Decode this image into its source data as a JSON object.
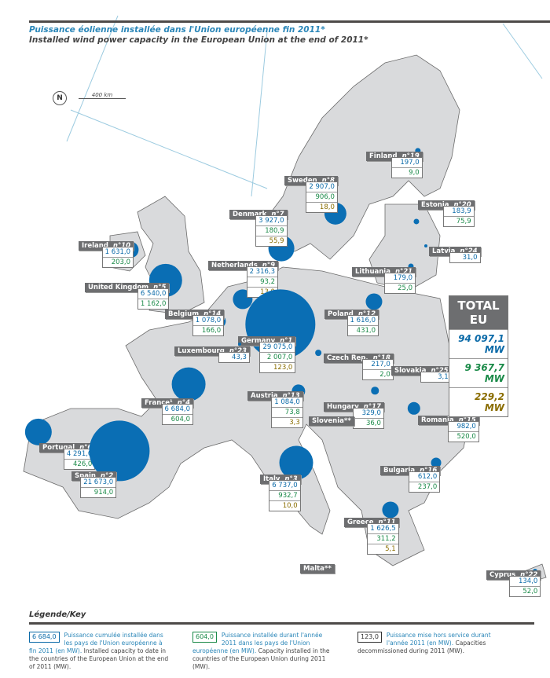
{
  "title_fr": "Puissance éolienne installée dans l'Union européenne fin 2011*",
  "title_en": "Installed wind power capacity in the European Union at the end of 2011*",
  "compass": "N",
  "scale": "400 km",
  "colors": {
    "cumulative": "#0b6aa8",
    "installed_2011": "#1a8a48",
    "decommissioned": "#8a6d00",
    "land": "#d9dadc",
    "label_bg": "#6d6e70",
    "bubble": "#0a6eb4"
  },
  "unit": "MW",
  "countries": [
    {
      "name": "Ireland",
      "rank": "n°10",
      "cumulative": "1 631,0",
      "installed": "203,0",
      "value": 1631
    },
    {
      "name": "United Kingdom",
      "rank": "n°5",
      "cumulative": "6 540,0",
      "installed": "1 162,0",
      "value": 6540
    },
    {
      "name": "Denmark",
      "rank": "n°7",
      "cumulative": "3 927,0",
      "installed": "180,9",
      "decommissioned": "55,9",
      "value": 3927
    },
    {
      "name": "Sweden",
      "rank": "n°8",
      "cumulative": "2 907,0",
      "installed": "906,0",
      "decommissioned": "18,0",
      "value": 2907
    },
    {
      "name": "Finland",
      "rank": "n°19",
      "cumulative": "197,0",
      "installed": "9,0",
      "value": 197
    },
    {
      "name": "Estonia",
      "rank": "n°20",
      "cumulative": "183,9",
      "installed": "75,9",
      "value": 183.9
    },
    {
      "name": "Latvia",
      "rank": "n°24",
      "cumulative": "31,0",
      "value": 31
    },
    {
      "name": "Lithuania",
      "rank": "n°21",
      "cumulative": "179,0",
      "installed": "25,0",
      "value": 179
    },
    {
      "name": "Netherlands",
      "rank": "n°9",
      "cumulative": "2 316,3",
      "installed": "93,2",
      "decommissioned": "13,9",
      "value": 2316.3
    },
    {
      "name": "Belgium",
      "rank": "n°14",
      "cumulative": "1 078,0",
      "installed": "166,0",
      "value": 1078
    },
    {
      "name": "Poland",
      "rank": "n°12",
      "cumulative": "1 616,0",
      "installed": "431,0",
      "value": 1616
    },
    {
      "name": "Germany",
      "rank": "n°1",
      "cumulative": "29 075,0",
      "installed": "2 007,0",
      "decommissioned": "123,0",
      "value": 29075
    },
    {
      "name": "Luxembourg",
      "rank": "n°23",
      "cumulative": "43,3",
      "value": 43.3
    },
    {
      "name": "Czech Rep.",
      "rank": "n°18",
      "cumulative": "217,0",
      "installed": "2,0",
      "value": 217
    },
    {
      "name": "Slovakia",
      "rank": "n°25",
      "cumulative": "3,1",
      "value": 3.1
    },
    {
      "name": "France¹",
      "rank": "n°4",
      "cumulative": "6 684,0",
      "installed": "604,0",
      "value": 6684
    },
    {
      "name": "Austria",
      "rank": "n°13",
      "cumulative": "1 084,0",
      "installed": "73,8",
      "decommissioned": "3,3",
      "value": 1084
    },
    {
      "name": "Hungary",
      "rank": "n°17",
      "cumulative": "329,0",
      "installed": "36,0",
      "value": 329
    },
    {
      "name": "Slovenia**",
      "rank": ""
    },
    {
      "name": "Romania",
      "rank": "n°15",
      "cumulative": "982,0",
      "installed": "520,0",
      "value": 982
    },
    {
      "name": "Portugal",
      "rank": "n°6",
      "cumulative": "4 291,0",
      "installed": "426,0",
      "value": 4291
    },
    {
      "name": "Spain",
      "rank": "n°2",
      "cumulative": "21 673,0",
      "installed": "914,0",
      "value": 21673
    },
    {
      "name": "Italy",
      "rank": "n°3",
      "cumulative": "6 737,0",
      "installed": "932,7",
      "decommissioned": "10,0",
      "value": 6737
    },
    {
      "name": "Bulgaria",
      "rank": "n°16",
      "cumulative": "612,0",
      "installed": "237,0",
      "value": 612
    },
    {
      "name": "Greece",
      "rank": "n°11",
      "cumulative": "1 626,5",
      "installed": "311,2",
      "decommissioned": "5,1",
      "value": 1626.5
    },
    {
      "name": "Malta**",
      "rank": ""
    },
    {
      "name": "Cyprus",
      "rank": "n°22",
      "cumulative": "134,0",
      "installed": "52,0",
      "value": 134
    }
  ],
  "total": {
    "label": "TOTAL EU",
    "cumulative": "94 097,1 MW",
    "installed": "9 367,7 MW",
    "decommissioned": "229,2 MW"
  },
  "legend": {
    "title": "Légende/Key",
    "items": [
      {
        "sample": "6 684,0",
        "text_fr": "Puissance cumulée installée dans les pays de l'Union européenne à fin 2011 (en MW).",
        "text_en": "Installed capacity to date in the countries of the European Union at the end of 2011 (MW)."
      },
      {
        "sample": "604,0",
        "text_fr": "Puissance installée durant l'année 2011 dans les pays de l'Union européenne (en MW).",
        "text_en": "Capacity installed in the countries of the European Union during 2011 (MW)."
      },
      {
        "sample": "123,0",
        "text_fr": "Puissance mise hors service durant l'année 2011 (en MW).",
        "text_en": "Capacities decommissioned during 2011 (MW)."
      }
    ]
  }
}
